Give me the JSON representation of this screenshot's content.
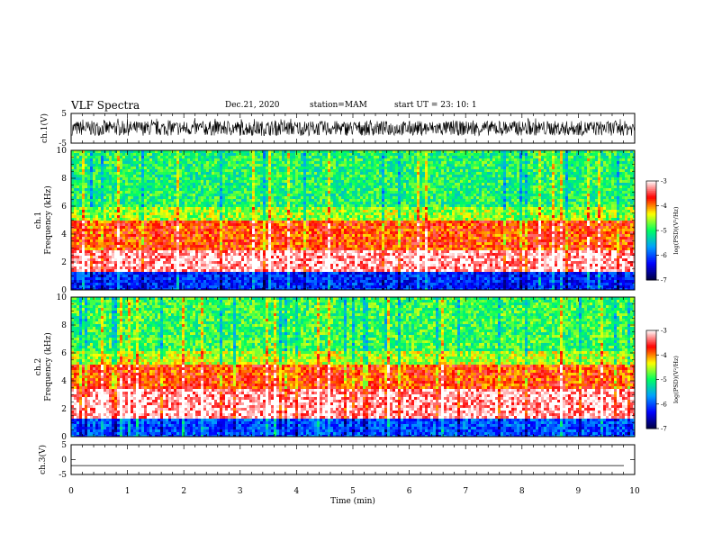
{
  "header": {
    "title": "VLF Spectra",
    "date": "Dec.21, 2020",
    "station": "station=MAM",
    "start_time": "start UT = 23: 10: 1"
  },
  "colors": {
    "background": "#ffffff",
    "waveform": "#000000",
    "colormap": [
      "#000040",
      "#0000ff",
      "#00a0ff",
      "#00ff60",
      "#ffff00",
      "#ff0000",
      "#ffffff"
    ]
  },
  "chart_data": [
    {
      "type": "line",
      "panel": "ch1-waveform",
      "ylabel": "ch.1(V)",
      "yticks": [
        "5",
        "-5"
      ],
      "ylim": [
        -5,
        5
      ],
      "xlim": [
        0,
        10
      ],
      "description_values": {
        "amplitude_min": -2.5,
        "amplitude_max": 2.5
      }
    },
    {
      "type": "heatmap",
      "panel": "ch1-spectrogram",
      "ylabel": "ch.1 Frequency (kHz)",
      "yticks": [
        "0",
        "2",
        "4",
        "6",
        "8",
        "10"
      ],
      "ylim": [
        0,
        10
      ],
      "xlim": [
        0,
        10
      ],
      "colorbar": {
        "label": "log(PSD)(V²/Hz)",
        "ticks": [
          "-3",
          "-4",
          "-5",
          "-6",
          "-7"
        ],
        "range": [
          -7,
          -3
        ]
      },
      "bands": [
        {
          "fmin": 0.0,
          "fmax": 1.3,
          "level": -6.2
        },
        {
          "fmin": 1.3,
          "fmax": 2.8,
          "level": -3.2
        },
        {
          "fmin": 2.8,
          "fmax": 5.0,
          "level": -3.8
        },
        {
          "fmin": 5.0,
          "fmax": 6.0,
          "level": -4.6
        },
        {
          "fmin": 6.0,
          "fmax": 10.0,
          "level": -5.0
        }
      ]
    },
    {
      "type": "heatmap",
      "panel": "ch2-spectrogram",
      "ylabel": "ch.2 Frequency (kHz)",
      "yticks": [
        "0",
        "2",
        "4",
        "6",
        "8",
        "10"
      ],
      "ylim": [
        0,
        10
      ],
      "xlim": [
        0,
        10
      ],
      "colorbar": {
        "label": "log(PSD)(V²/Hz)",
        "ticks": [
          "-3",
          "-4",
          "-5",
          "-6",
          "-7"
        ],
        "range": [
          -7,
          -3
        ]
      },
      "bands": [
        {
          "fmin": 0.0,
          "fmax": 1.2,
          "level": -6.0
        },
        {
          "fmin": 1.2,
          "fmax": 3.5,
          "level": -3.2
        },
        {
          "fmin": 3.5,
          "fmax": 5.2,
          "level": -3.8
        },
        {
          "fmin": 5.2,
          "fmax": 6.2,
          "level": -4.5
        },
        {
          "fmin": 6.2,
          "fmax": 10.0,
          "level": -4.9
        }
      ]
    },
    {
      "type": "line",
      "panel": "ch3-waveform",
      "ylabel": "ch.3(V)",
      "yticks": [
        "5",
        "0",
        "-5"
      ],
      "ylim": [
        -5,
        5
      ],
      "xlim": [
        0,
        10
      ],
      "xlabel": "Time (min)",
      "xticks": [
        "0",
        "1",
        "2",
        "3",
        "4",
        "5",
        "6",
        "7",
        "8",
        "9",
        "10"
      ],
      "y_value": -2.0
    }
  ]
}
